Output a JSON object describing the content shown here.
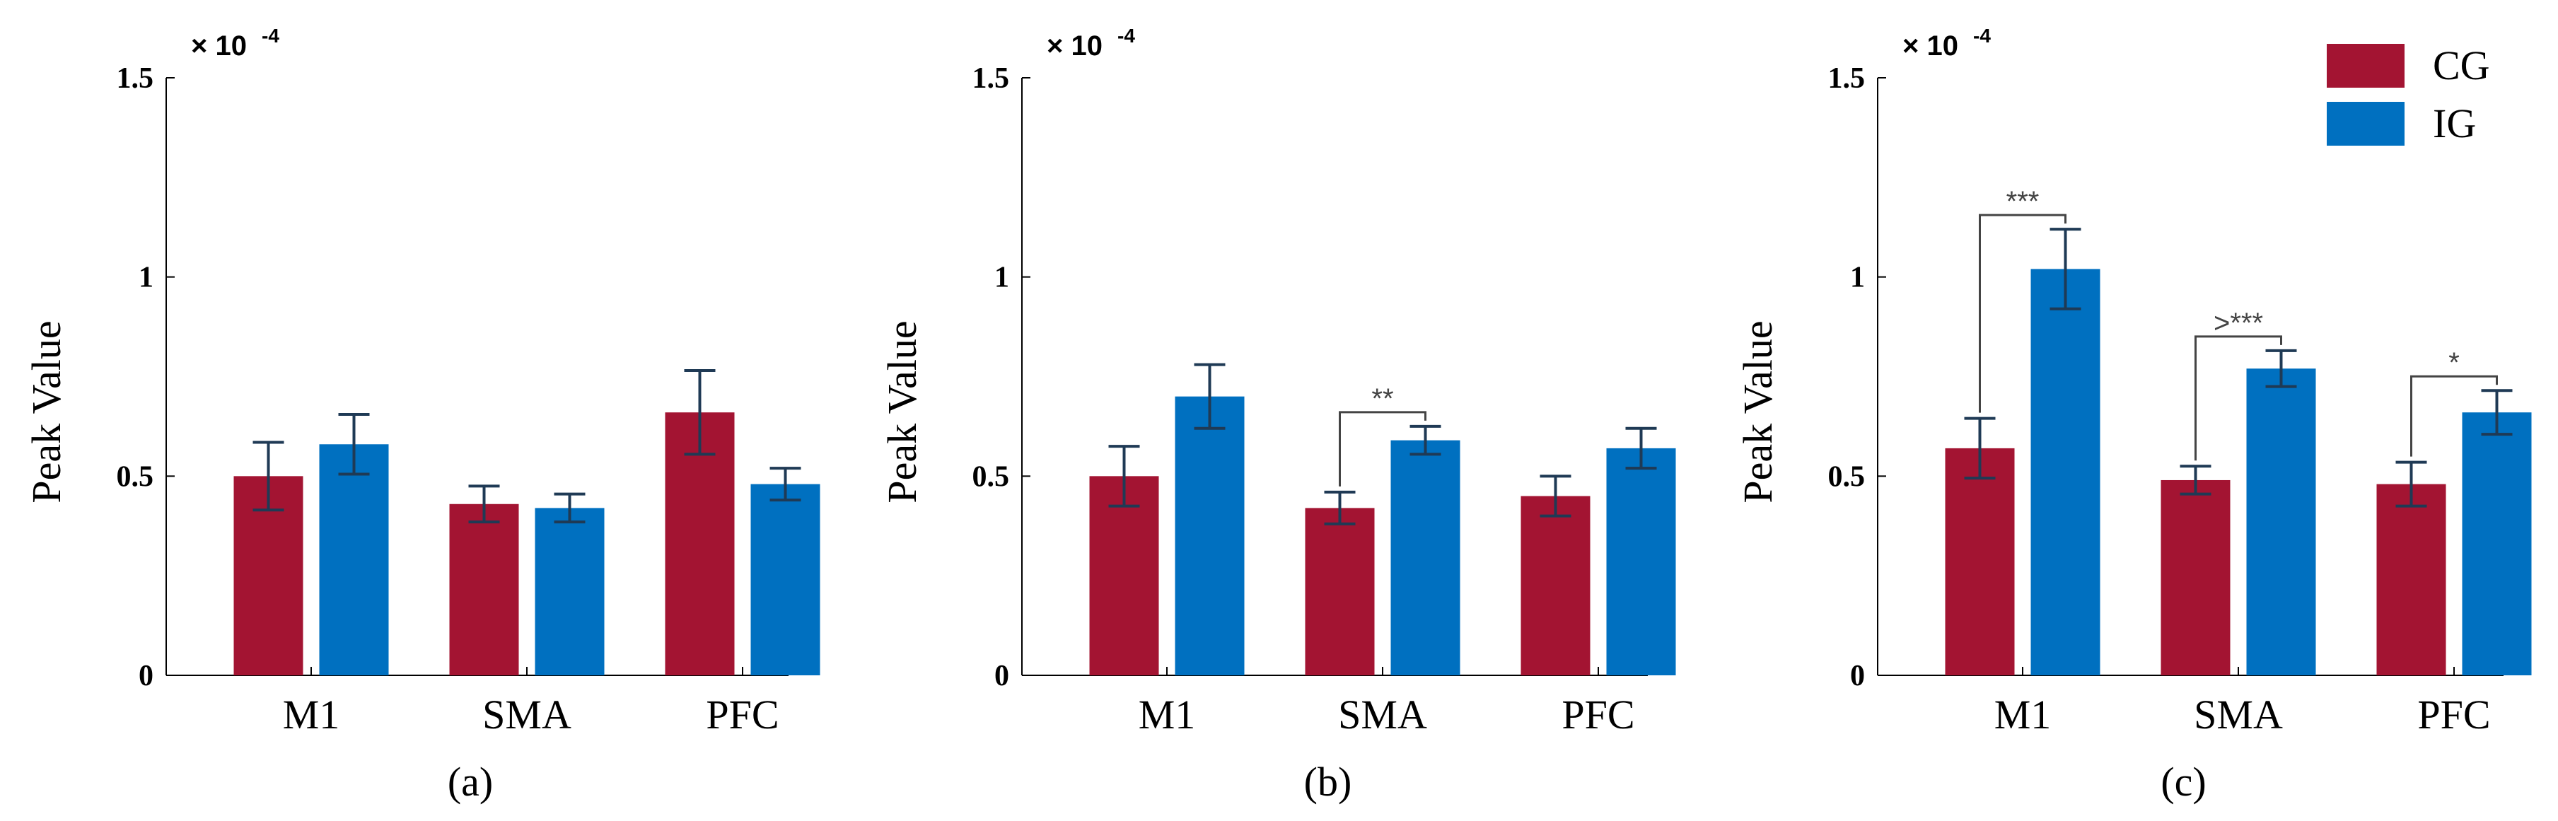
{
  "colors": {
    "CG": "#a31432",
    "IG": "#0070c0",
    "axis": "#000000",
    "bracket": "#444444",
    "error": "#1f3a55"
  },
  "chart_data": [
    {
      "type": "bar",
      "panel_label": "(a)",
      "categories": [
        "M1",
        "SMA",
        "PFC"
      ],
      "ylabel": "Peak Value",
      "scale_label": "× 10",
      "scale_exponent": "-4",
      "ylim": [
        0,
        1.5
      ],
      "yticks": [
        "0",
        "0.5",
        "1",
        "1.5"
      ],
      "series": [
        {
          "name": "CG",
          "values": [
            0.5,
            0.43,
            0.66
          ],
          "errors": [
            0.085,
            0.045,
            0.105
          ]
        },
        {
          "name": "IG",
          "values": [
            0.58,
            0.42,
            0.48
          ],
          "errors": [
            0.075,
            0.035,
            0.04
          ]
        }
      ],
      "significance": []
    },
    {
      "type": "bar",
      "panel_label": "(b)",
      "categories": [
        "M1",
        "SMA",
        "PFC"
      ],
      "ylabel": "Peak Value",
      "scale_label": "× 10",
      "scale_exponent": "-4",
      "ylim": [
        0,
        1.5
      ],
      "yticks": [
        "0",
        "0.5",
        "1",
        "1.5"
      ],
      "series": [
        {
          "name": "CG",
          "values": [
            0.5,
            0.42,
            0.45
          ],
          "errors": [
            0.075,
            0.04,
            0.05
          ]
        },
        {
          "name": "IG",
          "values": [
            0.7,
            0.59,
            0.57
          ],
          "errors": [
            0.08,
            0.035,
            0.05
          ]
        }
      ],
      "significance": [
        {
          "category_index": 1,
          "label": "**"
        }
      ]
    },
    {
      "type": "bar",
      "panel_label": "(c)",
      "categories": [
        "M1",
        "SMA",
        "PFC"
      ],
      "ylabel": "Peak Value",
      "scale_label": "× 10",
      "scale_exponent": "-4",
      "ylim": [
        0,
        1.5
      ],
      "yticks": [
        "0",
        "0.5",
        "1",
        "1.5"
      ],
      "series": [
        {
          "name": "CG",
          "values": [
            0.57,
            0.49,
            0.48
          ],
          "errors": [
            0.075,
            0.035,
            0.055
          ]
        },
        {
          "name": "IG",
          "values": [
            1.02,
            0.77,
            0.66
          ],
          "errors": [
            0.1,
            0.045,
            0.055
          ]
        }
      ],
      "significance": [
        {
          "category_index": 0,
          "label": "***"
        },
        {
          "category_index": 1,
          "label": ">***"
        },
        {
          "category_index": 2,
          "label": "*"
        }
      ],
      "legend": [
        {
          "name": "CG",
          "label": "CG"
        },
        {
          "name": "IG",
          "label": "IG"
        }
      ]
    }
  ]
}
